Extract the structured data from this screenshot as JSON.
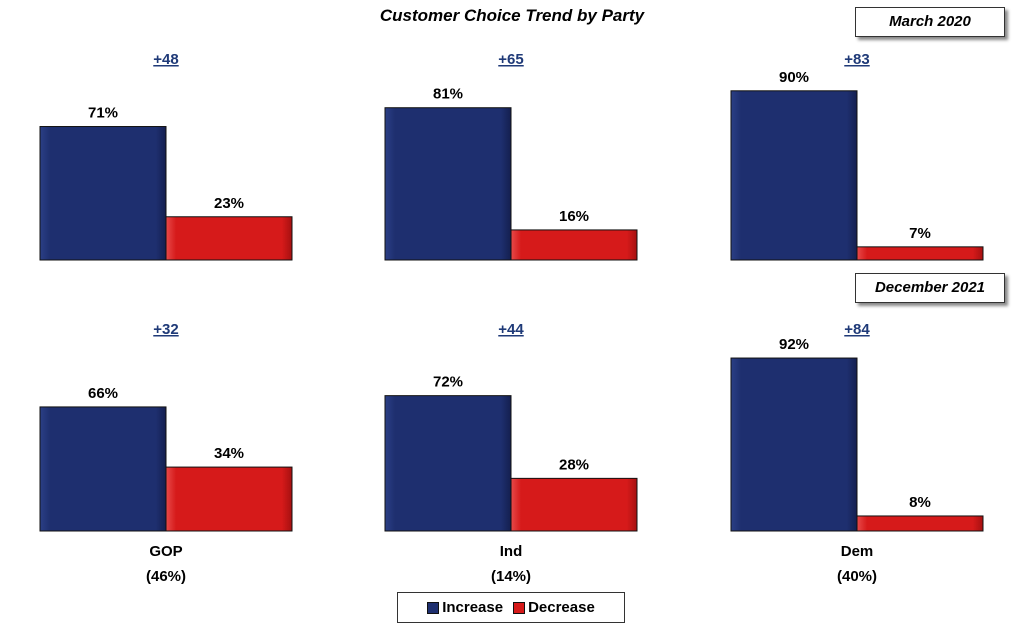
{
  "chart_data": [
    {
      "type": "bar",
      "period": "March 2020",
      "categories": [
        "GOP",
        "Ind",
        "Dem"
      ],
      "series": [
        {
          "name": "Increase",
          "values": [
            71,
            81,
            90
          ]
        },
        {
          "name": "Decrease",
          "values": [
            23,
            16,
            7
          ]
        }
      ],
      "net_labels": [
        "+48",
        "+65",
        "+83"
      ],
      "ylim": [
        0,
        100
      ]
    },
    {
      "type": "bar",
      "period": "December 2021",
      "categories": [
        "GOP",
        "Ind",
        "Dem"
      ],
      "series": [
        {
          "name": "Increase",
          "values": [
            66,
            72,
            92
          ]
        },
        {
          "name": "Decrease",
          "values": [
            34,
            28,
            8
          ]
        }
      ],
      "net_labels": [
        "+32",
        "+44",
        "+84"
      ],
      "ylim": [
        0,
        100
      ]
    }
  ],
  "title": "Customer Choice Trend by Party",
  "groups": [
    {
      "name": "GOP",
      "share": "(46%)"
    },
    {
      "name": "Ind",
      "share": "(14%)"
    },
    {
      "name": "Dem",
      "share": "(40%)"
    }
  ],
  "legend": {
    "increase": "Increase",
    "decrease": "Decrease"
  },
  "colors": {
    "increase": "#1e2f6f",
    "decrease": "#d61a1a",
    "net_label": "#1f3a78"
  }
}
